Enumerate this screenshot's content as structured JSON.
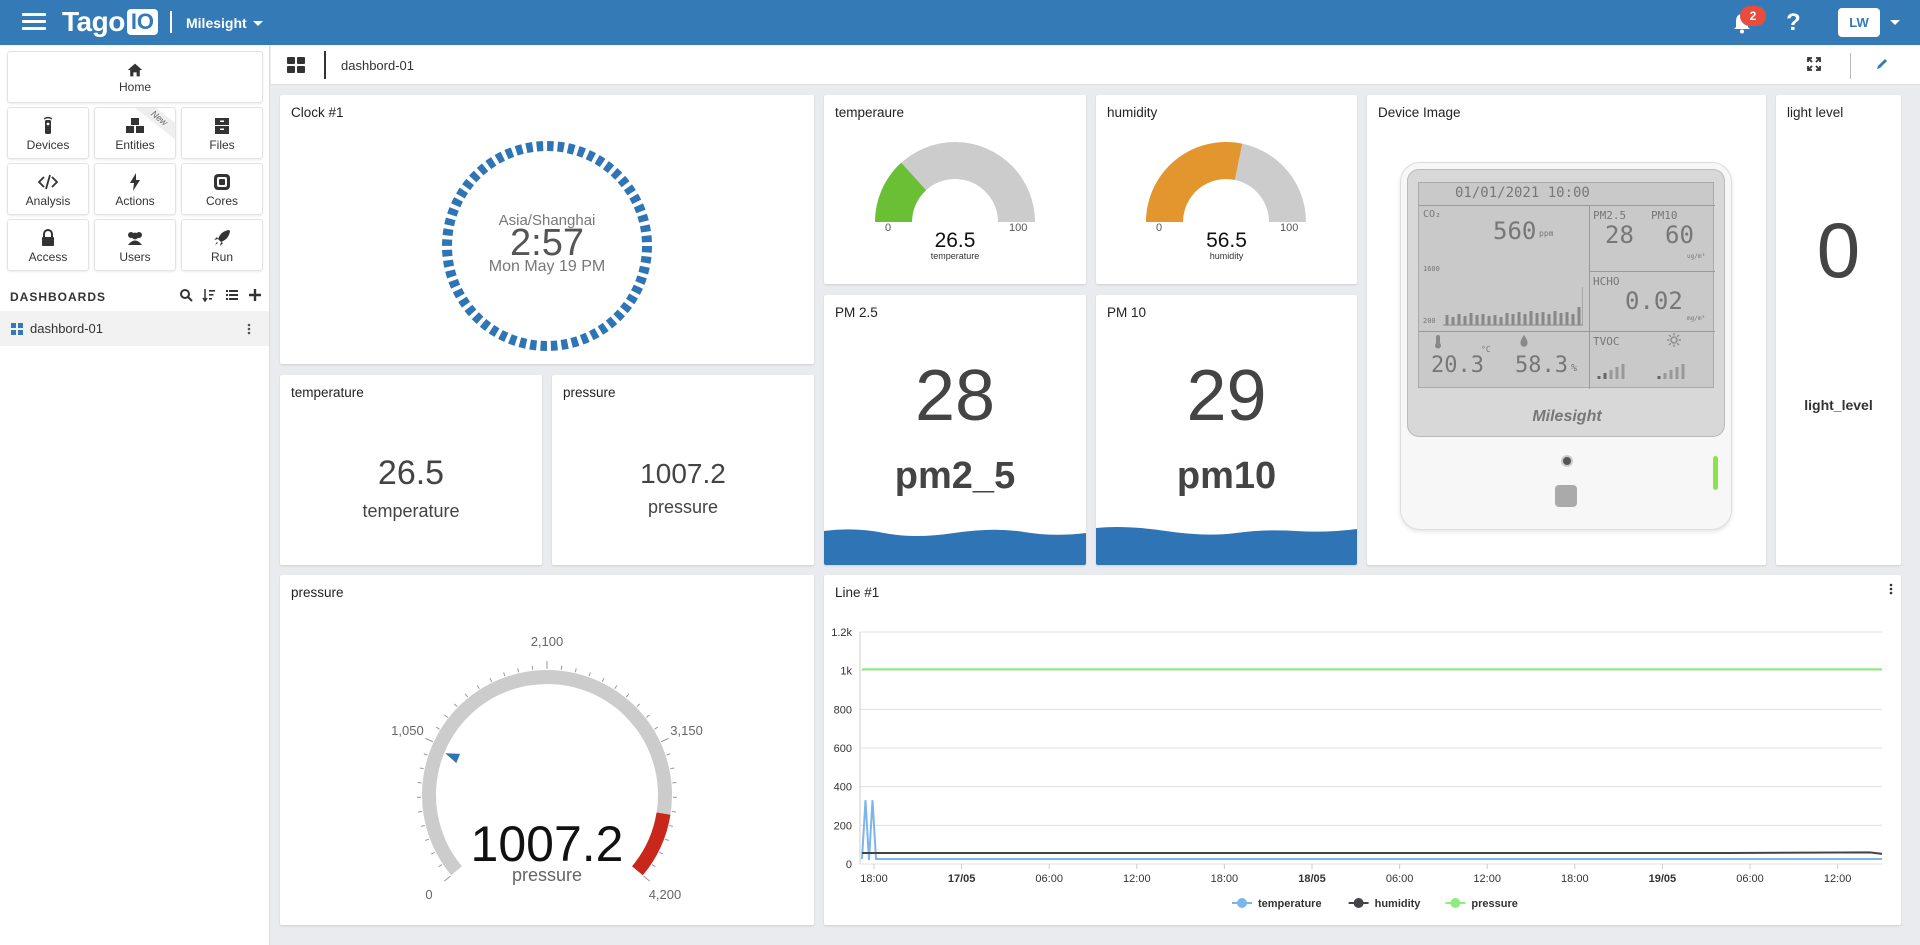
{
  "topbar": {
    "logo_text": "Tago",
    "logo_box": "IO",
    "profile": "Milesight",
    "notifications": "2",
    "help": "?",
    "user_initials": "LW"
  },
  "sidebar": {
    "home": "Home",
    "grid": [
      {
        "label": "Devices",
        "icon": "remote-icon"
      },
      {
        "label": "Entities",
        "icon": "cubes-icon",
        "ribbon": "New"
      },
      {
        "label": "Files",
        "icon": "archive-icon"
      },
      {
        "label": "Analysis",
        "icon": "code-icon"
      },
      {
        "label": "Actions",
        "icon": "bolt-icon"
      },
      {
        "label": "Cores",
        "icon": "chip-icon"
      },
      {
        "label": "Access",
        "icon": "lock-icon"
      },
      {
        "label": "Users",
        "icon": "users-icon"
      },
      {
        "label": "Run",
        "icon": "rocket-icon"
      }
    ],
    "dashboards_title": "DASHBOARDS",
    "dashboards": [
      "dashbord-01"
    ]
  },
  "breadcrumb": {
    "dashboard_name": "dashbord-01"
  },
  "widgets": {
    "clock": {
      "title": "Clock #1",
      "timezone": "Asia/Shanghai",
      "time": "2:57",
      "date": "Mon May 19 PM"
    },
    "temp_gauge": {
      "title": "temperaure",
      "value": "26.5",
      "label": "temperature",
      "min": "0",
      "max": "100",
      "fraction": 0.265,
      "color": "#6abf35"
    },
    "hum_gauge": {
      "title": "humidity",
      "value": "56.5",
      "label": "humidity",
      "min": "0",
      "max": "100",
      "fraction": 0.565,
      "color": "#e3962e"
    },
    "device_image": {
      "title": "Device Image",
      "screen": {
        "datetime": "01/01/2021  10:00",
        "co2_label": "CO₂",
        "co2_value": "560",
        "co2_unit": "ppm",
        "pm25_label": "PM2.5",
        "pm10_label": "PM10",
        "pm25_value": "28",
        "pm10_value": "60",
        "pm_unit": "ug/m³",
        "chart_top": "1600",
        "chart_bottom": "200",
        "hcho_label": "HCHO",
        "hcho_value": "0.02",
        "hcho_unit": "mg/m³",
        "temp_value": "20.3",
        "temp_unit": "°C",
        "hum_value": "58.3",
        "hum_unit": "%",
        "tvoc_label": "TVOC"
      },
      "brand": "Milesight"
    },
    "light": {
      "title": "light level",
      "value": "0",
      "label": "light_level"
    },
    "pm25": {
      "title": "PM 2.5",
      "value": "28",
      "label": "pm2_5",
      "wave_color": "#2f74b5"
    },
    "pm10": {
      "title": "PM 10",
      "value": "29",
      "label": "pm10",
      "wave_color": "#2f74b5"
    },
    "temperature_card": {
      "title": "temperature",
      "value": "26.5",
      "label": "temperature"
    },
    "pressure_card": {
      "title": "pressure",
      "value": "1007.2",
      "label": "pressure"
    },
    "pressure_dial": {
      "title": "pressure",
      "value": "1007.2",
      "label": "pressure",
      "ticks": [
        "0",
        "1,050",
        "2,100",
        "3,150",
        "4,200"
      ],
      "min": 0,
      "max": 4200,
      "reading": 1007.2,
      "red_from": 3700
    },
    "line_chart": {
      "title": "Line #1"
    }
  },
  "chart_data": {
    "type": "line",
    "title": "Line #1",
    "ylim": [
      0,
      1200
    ],
    "y_ticks": [
      "0",
      "200",
      "400",
      "600",
      "800",
      "1k",
      "1.2k"
    ],
    "x_ticks": [
      "18:00",
      "17/05",
      "06:00",
      "12:00",
      "18:00",
      "18/05",
      "06:00",
      "12:00",
      "18:00",
      "19/05",
      "06:00",
      "12:00"
    ],
    "x_ticks_bold": [
      "17/05",
      "18/05",
      "19/05"
    ],
    "grid": true,
    "legend": "bottom-center",
    "series": [
      {
        "name": "temperature",
        "color": "#7cb5ec",
        "y": [
          26,
          330,
          20,
          330,
          26,
          26,
          26,
          26,
          26,
          26,
          26,
          26,
          26
        ]
      },
      {
        "name": "humidity",
        "color": "#434348",
        "y": [
          57,
          57,
          57,
          57,
          57,
          57,
          57,
          57,
          57,
          57,
          57,
          60,
          52
        ]
      },
      {
        "name": "pressure",
        "color": "#90ed7d",
        "y": [
          1007,
          1007,
          1007,
          1007,
          1007,
          1007,
          1007,
          1007,
          1007,
          1007,
          1007,
          1007,
          1007
        ]
      }
    ]
  }
}
